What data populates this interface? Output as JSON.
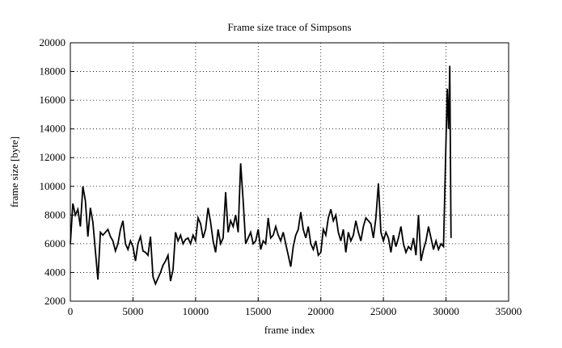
{
  "chart_data": {
    "type": "line",
    "title": "Frame size trace of Simpsons",
    "x_label": "frame index",
    "y_label": "frame size [byte]",
    "x": [
      0,
      200,
      400,
      600,
      800,
      1000,
      1200,
      1400,
      1600,
      1800,
      2000,
      2200,
      2400,
      2600,
      2800,
      3000,
      3200,
      3400,
      3600,
      3800,
      4000,
      4200,
      4400,
      4600,
      4800,
      5000,
      5200,
      5400,
      5600,
      5800,
      6000,
      6200,
      6400,
      6600,
      6800,
      7000,
      7200,
      7400,
      7600,
      7800,
      8000,
      8200,
      8400,
      8600,
      8800,
      9000,
      9200,
      9400,
      9600,
      9800,
      10000,
      10200,
      10400,
      10600,
      10800,
      11000,
      11200,
      11400,
      11600,
      11800,
      12000,
      12200,
      12400,
      12600,
      12800,
      13000,
      13200,
      13400,
      13600,
      13800,
      14000,
      14200,
      14400,
      14600,
      14800,
      15000,
      15200,
      15400,
      15600,
      15800,
      16000,
      16200,
      16400,
      16600,
      16800,
      17000,
      17200,
      17400,
      17600,
      17800,
      18000,
      18200,
      18400,
      18600,
      18800,
      19000,
      19200,
      19400,
      19600,
      19800,
      20000,
      20200,
      20400,
      20600,
      20800,
      21000,
      21200,
      21400,
      21600,
      21800,
      22000,
      22200,
      22400,
      22600,
      22800,
      23000,
      23200,
      23400,
      23600,
      23800,
      24000,
      24200,
      24400,
      24600,
      24800,
      25000,
      25200,
      25400,
      25600,
      25800,
      26000,
      26200,
      26400,
      26600,
      26800,
      27000,
      27200,
      27400,
      27600,
      27800,
      28000,
      28200,
      28400,
      28600,
      28800,
      29000,
      29200,
      29400,
      29600,
      29800,
      30000,
      30100,
      30200,
      30300,
      30400
    ],
    "series": [
      {
        "name": "Simpsons",
        "color": "#000000",
        "values": [
          6000,
          8800,
          8000,
          8400,
          7200,
          10000,
          9000,
          6500,
          8500,
          7500,
          5500,
          3500,
          6800,
          6600,
          6800,
          7000,
          6500,
          6200,
          5500,
          6000,
          7000,
          7600,
          6000,
          5600,
          6200,
          5800,
          4800,
          6000,
          6500,
          5500,
          5400,
          5200,
          6500,
          3700,
          3200,
          3600,
          4000,
          4500,
          4800,
          5200,
          3400,
          4200,
          6800,
          6200,
          6600,
          6000,
          6300,
          6400,
          6000,
          6600,
          6200,
          7800,
          7400,
          6400,
          7000,
          8500,
          7500,
          6200,
          5400,
          7000,
          6000,
          6400,
          9600,
          6800,
          7600,
          7200,
          8000,
          6800,
          11600,
          9000,
          6000,
          6400,
          6800,
          6000,
          6200,
          7000,
          5600,
          6200,
          6000,
          7800,
          6400,
          6600,
          7200,
          6600,
          6200,
          6800,
          6000,
          5200,
          4400,
          5800,
          6600,
          7000,
          8200,
          7000,
          6400,
          7200,
          6000,
          5600,
          6200,
          5200,
          5400,
          7000,
          6600,
          7800,
          8400,
          7600,
          8000,
          6800,
          6200,
          7000,
          5400,
          6800,
          6200,
          6600,
          7600,
          6800,
          6200,
          7200,
          7800,
          7600,
          7400,
          6400,
          7800,
          10200,
          6800,
          6200,
          6800,
          6400,
          5400,
          6600,
          5800,
          6400,
          7200,
          6000,
          5400,
          5800,
          5600,
          6400,
          5200,
          8000,
          4800,
          5600,
          6200,
          7200,
          6400,
          5600,
          6200,
          5600,
          6000,
          5800,
          13200,
          16800,
          14000,
          18400,
          6400
        ]
      }
    ],
    "xlim": [
      0,
      35000
    ],
    "xticks": [
      0,
      5000,
      10000,
      15000,
      20000,
      25000,
      30000,
      35000
    ],
    "ylim": [
      2000,
      20000
    ],
    "yticks": [
      2000,
      4000,
      6000,
      8000,
      10000,
      12000,
      14000,
      16000,
      18000,
      20000
    ],
    "grid": true
  }
}
